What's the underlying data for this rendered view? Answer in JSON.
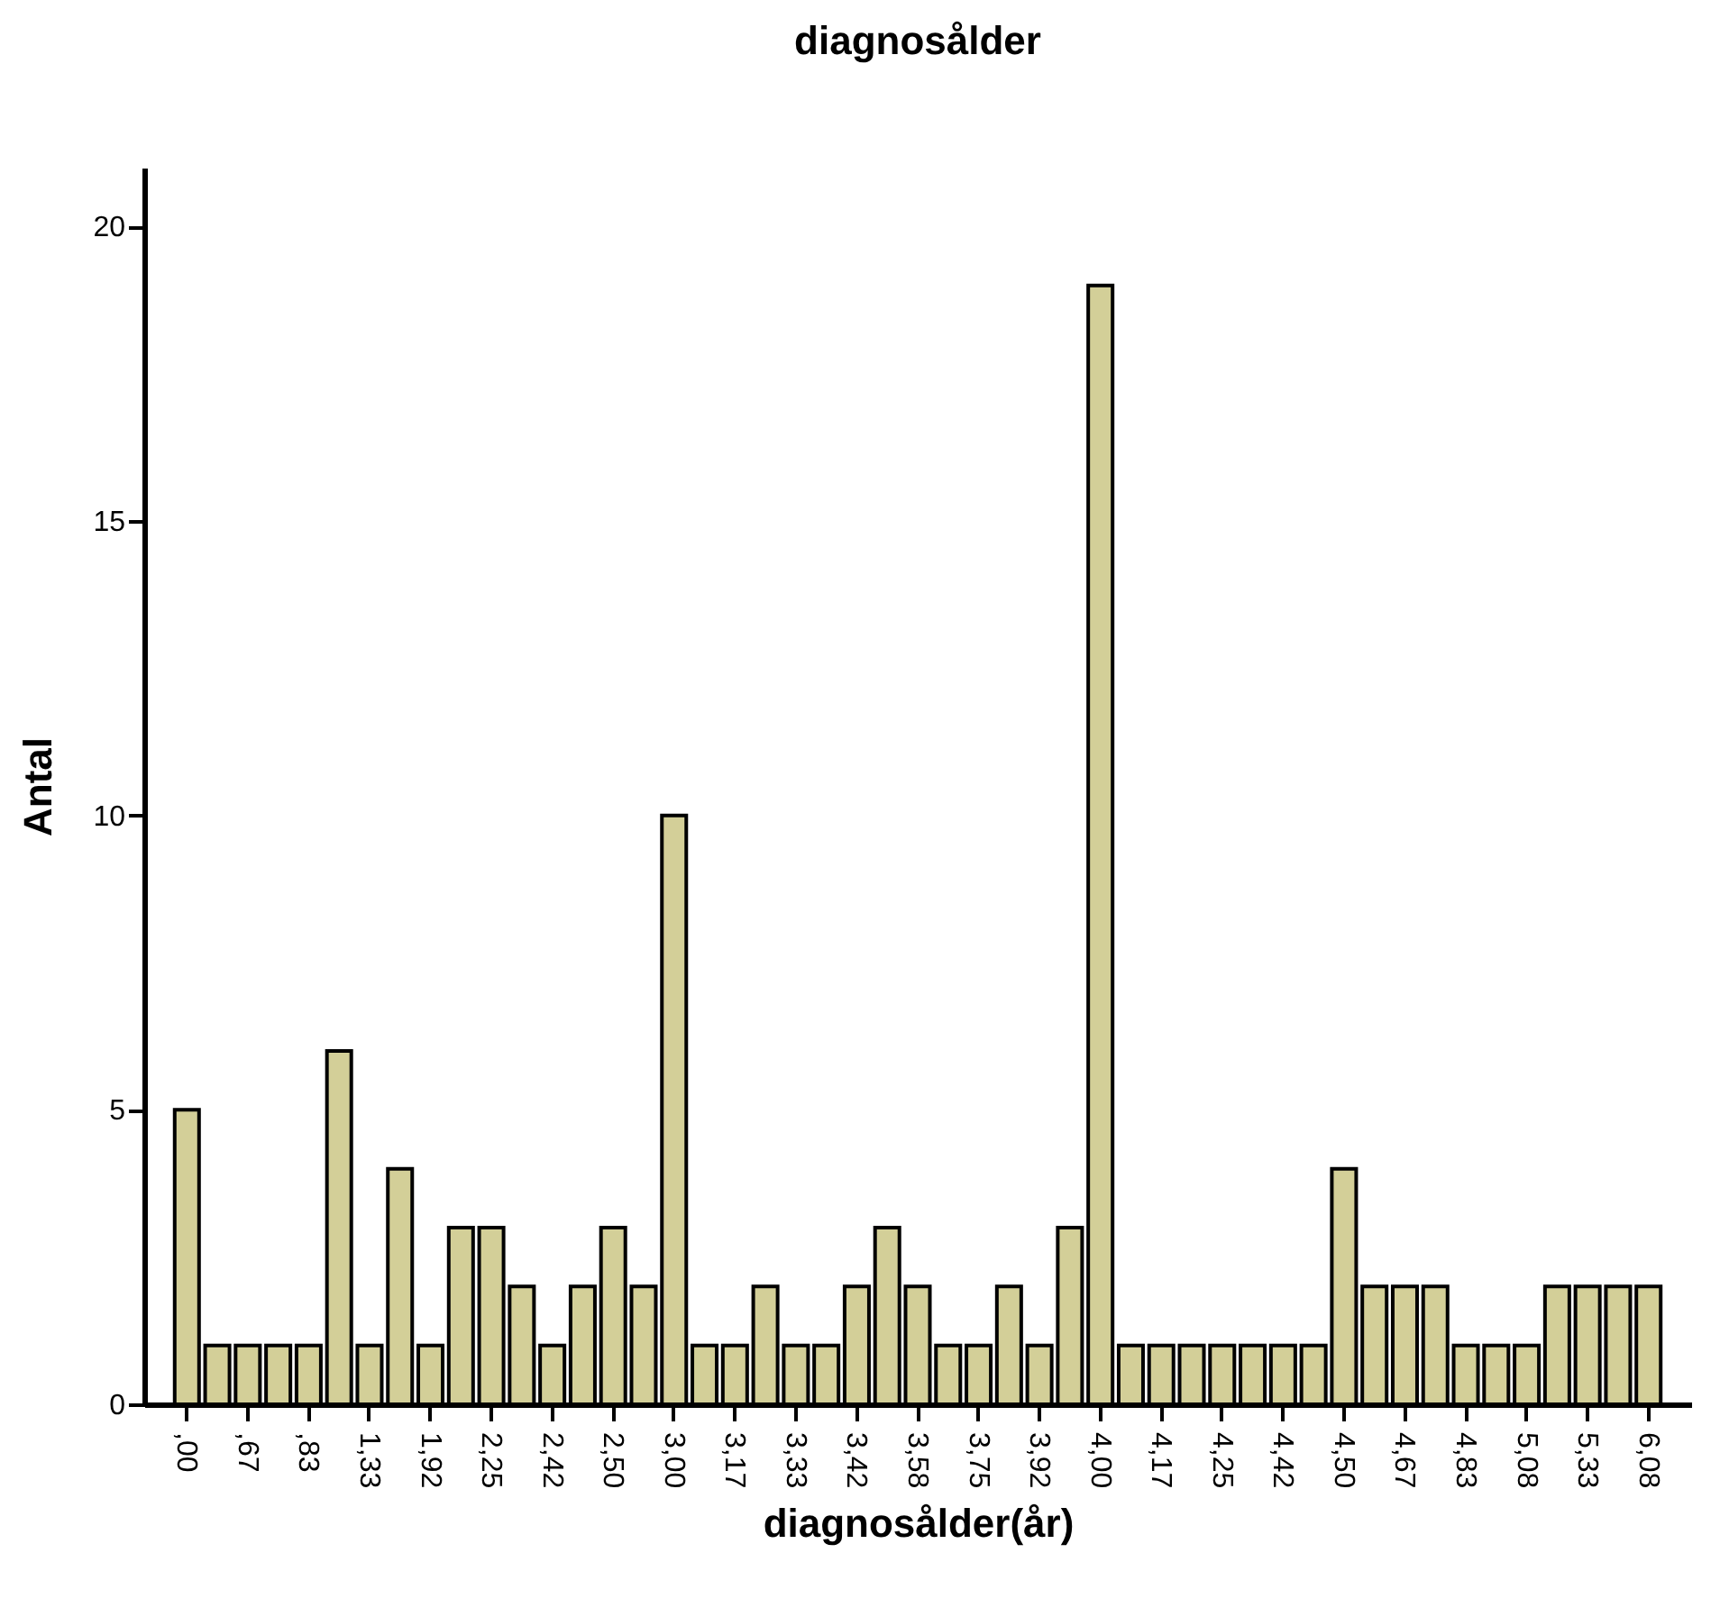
{
  "chart_data": {
    "type": "bar",
    "title": "diagnosålder",
    "xlabel": "diagnosålder(år)",
    "ylabel": "Antal",
    "categories": [
      ",00",
      null,
      ",67",
      null,
      ",83",
      null,
      "1,33",
      null,
      "1,92",
      null,
      "2,25",
      null,
      "2,42",
      null,
      "2,50",
      null,
      "3,00",
      null,
      "3,17",
      null,
      "3,33",
      null,
      "3,42",
      null,
      "3,58",
      null,
      "3,75",
      null,
      "3,92",
      null,
      "4,00",
      null,
      "4,17",
      null,
      "4,25",
      null,
      "4,42",
      null,
      "4,50",
      null,
      "4,67",
      null,
      "4,83",
      null,
      "5,08",
      null,
      "5,33",
      null,
      "6,08"
    ],
    "values": [
      5,
      1,
      1,
      1,
      1,
      6,
      1,
      4,
      1,
      3,
      3,
      2,
      1,
      2,
      3,
      2,
      10,
      1,
      1,
      2,
      1,
      1,
      2,
      3,
      2,
      1,
      1,
      2,
      1,
      3,
      19,
      1,
      1,
      1,
      1,
      1,
      1,
      1,
      4,
      2,
      2,
      2,
      1,
      1,
      1,
      2,
      2,
      2,
      2
    ],
    "color": "#d3cf98",
    "ylim": [
      0,
      21
    ],
    "yticks": [
      0,
      5,
      10,
      15,
      20
    ],
    "grid": false
  }
}
